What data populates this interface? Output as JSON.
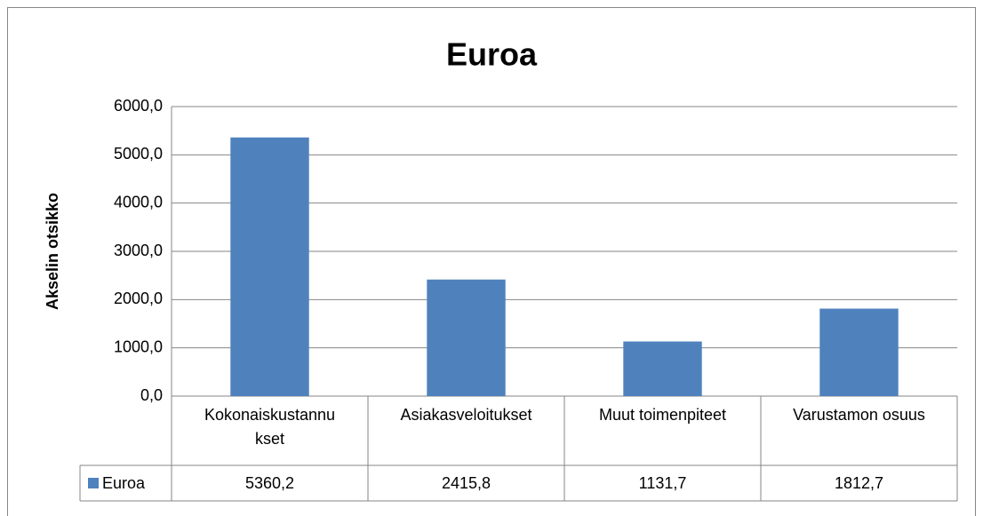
{
  "chart_data": {
    "type": "bar",
    "title": "Euroa",
    "y_label": "Akselin otsikko",
    "categories": [
      "Kokonaiskustannukset",
      "Asiakasveloitukset",
      "Muut toimenpiteet",
      "Varustamon osuus"
    ],
    "series": [
      {
        "name": "Euroa",
        "color": "#4f81bd",
        "values": [
          5360.2,
          2415.8,
          1131.7,
          1812.7
        ],
        "value_labels": [
          "5360,2",
          "2415,8",
          "1131,7",
          "1812,7"
        ]
      }
    ],
    "ylim": [
      0,
      6000
    ],
    "yticks": [
      {
        "value": 0,
        "label": "0,0"
      },
      {
        "value": 1000,
        "label": "1000,0"
      },
      {
        "value": 2000,
        "label": "2000,0"
      },
      {
        "value": 3000,
        "label": "3000,0"
      },
      {
        "value": 4000,
        "label": "4000,0"
      },
      {
        "value": 5000,
        "label": "5000,0"
      },
      {
        "value": 6000,
        "label": "6000,0"
      }
    ],
    "grid": true
  }
}
